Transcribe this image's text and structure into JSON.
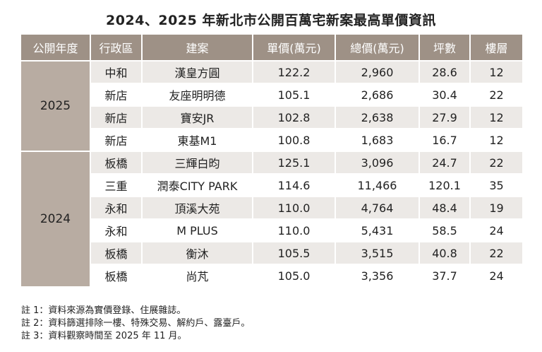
{
  "title": "2024、2025 年新北市公開百萬宅新案最高單價資訊",
  "table": {
    "header": [
      "公開年度",
      "行政區",
      "建案",
      "單價(萬元)",
      "總價(萬元)",
      "坪數",
      "樓層"
    ],
    "groups": [
      {
        "year": "2025",
        "rows": [
          [
            "中和",
            "漢皇方圓",
            "122.2",
            "2,960",
            "28.6",
            "12"
          ],
          [
            "新店",
            "友座明明德",
            "105.1",
            "2,686",
            "30.4",
            "22"
          ],
          [
            "新店",
            "寶安JR",
            "102.8",
            "2,638",
            "27.9",
            "12"
          ],
          [
            "新店",
            "東基M1",
            "100.8",
            "1,683",
            "16.7",
            "12"
          ]
        ]
      },
      {
        "year": "2024",
        "rows": [
          [
            "板橋",
            "三輝白昀",
            "125.1",
            "3,096",
            "24.7",
            "22"
          ],
          [
            "三重",
            "潤泰CITY PARK",
            "114.6",
            "11,466",
            "120.1",
            "35"
          ],
          [
            "永和",
            "頂溪大苑",
            "110.0",
            "4,764",
            "48.4",
            "19"
          ],
          [
            "永和",
            "M PLUS",
            "110.0",
            "5,431",
            "58.5",
            "24"
          ],
          [
            "板橋",
            "衡沐",
            "105.5",
            "3,515",
            "40.8",
            "22"
          ],
          [
            "板橋",
            "尚芃",
            "105.0",
            "3,356",
            "37.7",
            "24"
          ]
        ]
      }
    ]
  },
  "notes": [
    "註 1：資料來源為實價登錄、住展雜誌。",
    "註 2：資料篩選排除一樓、特殊交易、解約戶、露臺戶。",
    "註 3：資料觀察時間至 2025 年 11 月。"
  ]
}
